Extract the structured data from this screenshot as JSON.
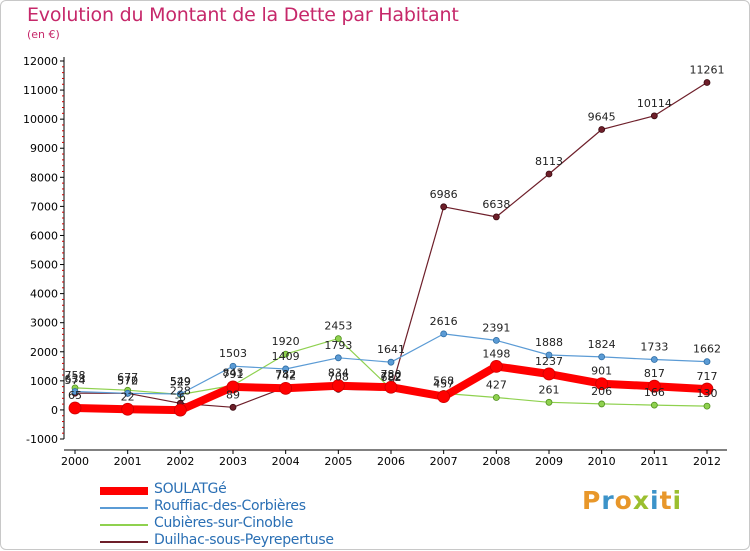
{
  "header": {
    "title": "Evolution du Montant de la Dette par Habitant",
    "subtitle": "(en €)"
  },
  "brand": {
    "text": "Proxiti",
    "letters": [
      {
        "ch": "P",
        "color": "#e8972a"
      },
      {
        "ch": "r",
        "color": "#3c93c9"
      },
      {
        "ch": "o",
        "color": "#e8972a"
      },
      {
        "ch": "x",
        "color": "#9bbf2f"
      },
      {
        "ch": "i",
        "color": "#3c93c9"
      },
      {
        "ch": "t",
        "color": "#e8972a"
      },
      {
        "ch": "i",
        "color": "#9bbf2f"
      }
    ]
  },
  "chart_data": {
    "type": "line",
    "title": "Evolution du Montant de la Dette par Habitant",
    "ylabel": "(en €)",
    "x": [
      "2000",
      "2001",
      "2002",
      "2003",
      "2004",
      "2005",
      "2006",
      "2007",
      "2008",
      "2009",
      "2010",
      "2011",
      "2012"
    ],
    "ylim": [
      -1000,
      12000
    ],
    "yticks": [
      -1000,
      0,
      1000,
      2000,
      3000,
      4000,
      5000,
      6000,
      7000,
      8000,
      9000,
      10000,
      11000,
      12000
    ],
    "grid": false,
    "legend": "bottom",
    "series": [
      {
        "name": "SOULATGé",
        "color": "#ff0000",
        "values": [
          65,
          22,
          -6,
          791,
          742,
          834,
          780,
          457,
          1498,
          1237,
          901,
          817,
          717
        ]
      },
      {
        "name": "Rouffiac-des-Corbières",
        "color": "#5b9bd5",
        "values": [
          633,
          572,
          549,
          1503,
          1409,
          1793,
          1641,
          2616,
          2391,
          1888,
          1824,
          1733,
          1662
        ]
      },
      {
        "name": "Cubières-sur-Cinoble",
        "color": "#8fd14f",
        "values": [
          758,
          677,
          529,
          843,
          1920,
          2453,
          722,
          568,
          427,
          261,
          206,
          166,
          130
        ]
      },
      {
        "name": "Duilhac-sous-Peyrepertuse",
        "color": "#6e1f2a",
        "values": [
          574,
          570,
          228,
          89,
          782,
          708,
          682,
          6986,
          6638,
          8113,
          9645,
          10114,
          11261
        ]
      }
    ]
  }
}
